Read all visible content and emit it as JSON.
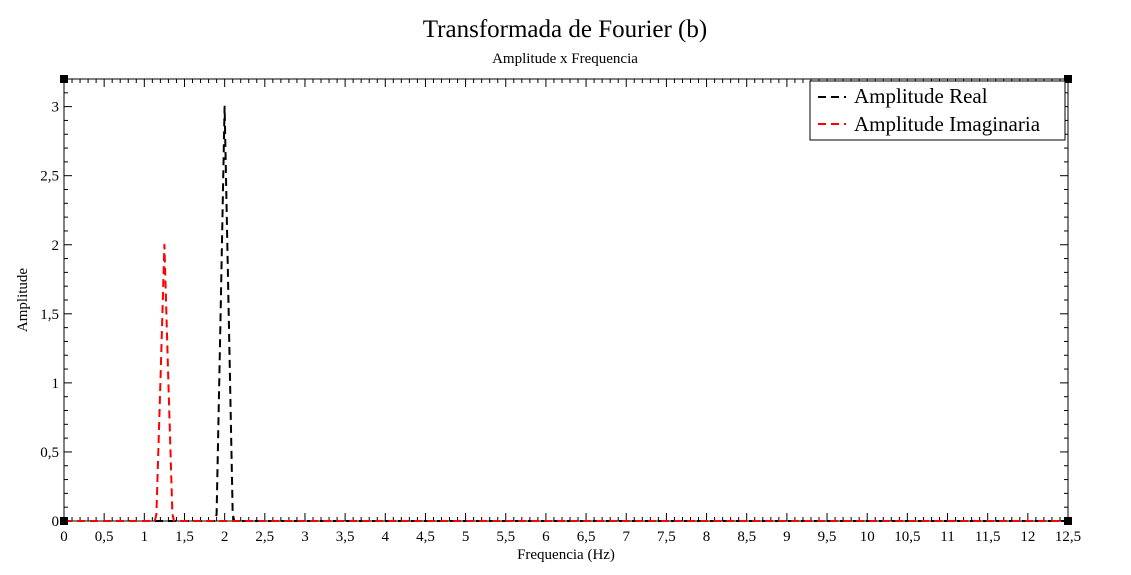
{
  "chart_data": {
    "type": "line",
    "title": "Transformada de Fourier (b)",
    "subtitle": "Amplitude x Frequencia",
    "xlabel": "Frequencia (Hz)",
    "ylabel": "Amplitude",
    "xlim": [
      0,
      12.5
    ],
    "ylim": [
      0,
      3.2
    ],
    "x_ticks": [
      0,
      0.5,
      1,
      1.5,
      2,
      2.5,
      3,
      3.5,
      4,
      4.5,
      5,
      5.5,
      6,
      6.5,
      7,
      7.5,
      8,
      8.5,
      9,
      9.5,
      10,
      10.5,
      11,
      11.5,
      12,
      12.5
    ],
    "x_tick_labels": [
      "0",
      "0,5",
      "1",
      "1,5",
      "2",
      "2,5",
      "3",
      "3,5",
      "4",
      "4,5",
      "5",
      "5,5",
      "6",
      "6,5",
      "7",
      "7,5",
      "8",
      "8,5",
      "9",
      "9,5",
      "10",
      "10,5",
      "11",
      "11,5",
      "12",
      "12,5"
    ],
    "y_ticks": [
      0,
      0.5,
      1,
      1.5,
      2,
      2.5,
      3
    ],
    "y_tick_labels": [
      "0",
      "0,5",
      "1",
      "1,5",
      "2",
      "2,5",
      "3"
    ],
    "grid": false,
    "legend": "top-right",
    "series": [
      {
        "name": "Amplitude Real",
        "color": "#000000",
        "style": "dashed",
        "x": [
          0,
          1.88,
          1.9,
          1.95,
          2.0,
          2.05,
          2.1,
          2.12,
          12.5
        ],
        "y": [
          0,
          0,
          0.05,
          1.5,
          3.0,
          1.5,
          0.05,
          0,
          0
        ]
      },
      {
        "name": "Amplitude Imaginaria",
        "color": "#ff0000",
        "style": "dashed",
        "x": [
          0,
          1.13,
          1.15,
          1.2,
          1.25,
          1.3,
          1.35,
          1.37,
          12.5
        ],
        "y": [
          0,
          0,
          0.05,
          1.0,
          2.0,
          1.0,
          0.05,
          0,
          0
        ]
      }
    ]
  }
}
